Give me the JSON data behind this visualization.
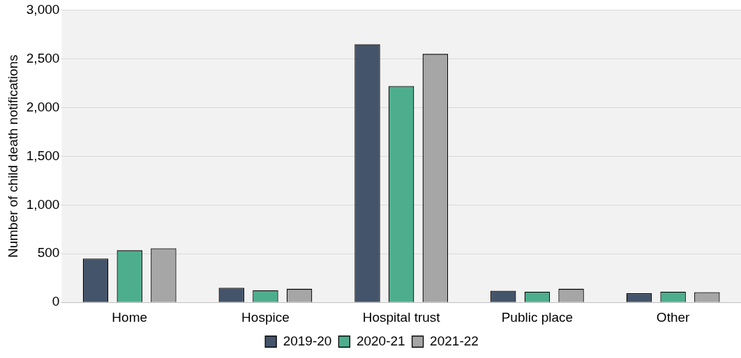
{
  "chart_data": {
    "type": "bar",
    "ylabel": "Number of child death notifications",
    "categories": [
      "Home",
      "Hospice",
      "Hospital trust",
      "Public place",
      "Other"
    ],
    "series": [
      {
        "name": "2019-20",
        "color": "#44546a",
        "values": [
          450,
          150,
          2650,
          120,
          95
        ]
      },
      {
        "name": "2020-21",
        "color": "#4dae8e",
        "values": [
          535,
          125,
          2220,
          110,
          110
        ]
      },
      {
        "name": "2021-22",
        "color": "#a6a6a6",
        "values": [
          555,
          140,
          2550,
          140,
          105
        ]
      }
    ],
    "ylim": [
      0,
      3000
    ],
    "yticks": [
      {
        "value": 0,
        "label": "0"
      },
      {
        "value": 500,
        "label": "500"
      },
      {
        "value": 1000,
        "label": "1,000"
      },
      {
        "value": 1500,
        "label": "1,500"
      },
      {
        "value": 2000,
        "label": "2,000"
      },
      {
        "value": 2500,
        "label": "2,500"
      },
      {
        "value": 3000,
        "label": "3,000"
      }
    ],
    "grid": "y",
    "legend": "bottom"
  }
}
